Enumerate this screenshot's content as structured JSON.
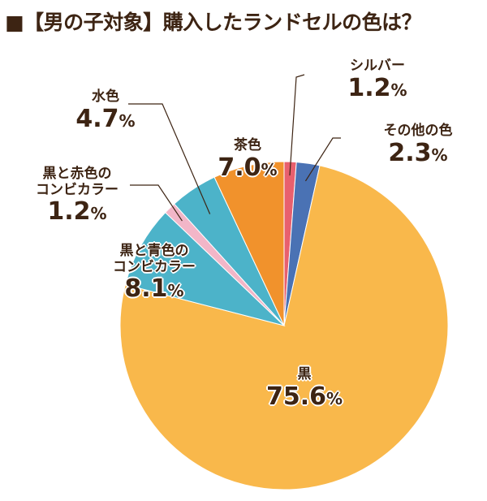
{
  "chart_data": {
    "type": "pie",
    "title": "■【男の子対象】購入したランドセルの色は？",
    "start": "top",
    "direction": "clockwise",
    "slices": [
      {
        "label": "シルバー",
        "value": 1.2,
        "display": "1.2",
        "color": "#e8606e"
      },
      {
        "label": "その他の色",
        "value": 2.3,
        "display": "2.3",
        "color": "#4a72b4"
      },
      {
        "label": "黒",
        "value": 75.6,
        "display": "75.6",
        "color": "#f9b84b"
      },
      {
        "label": "黒と青色のコンビカラー",
        "value": 8.1,
        "display": "8.1",
        "color": "#4cb3c9"
      },
      {
        "label": "黒と赤色のコンビカラー",
        "value": 1.2,
        "display": "1.2",
        "color": "#f2b6c8"
      },
      {
        "label": "水色",
        "value": 4.7,
        "display": "4.7",
        "color": "#4cb3c9"
      },
      {
        "label": "茶色",
        "value": 7.0,
        "display": "7.0",
        "color": "#f1922c"
      }
    ],
    "unit": "%"
  }
}
